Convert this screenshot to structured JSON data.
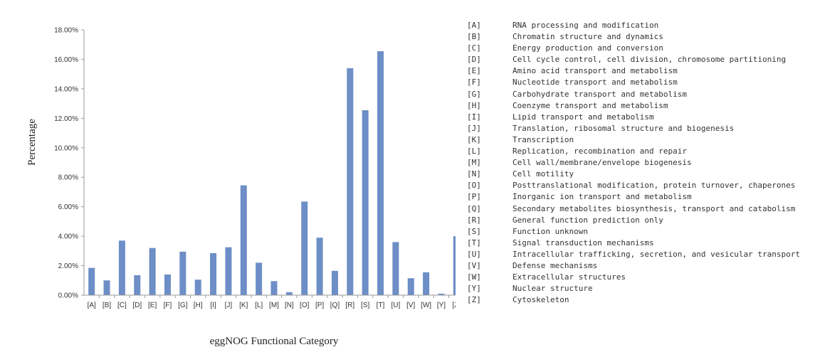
{
  "chart_data": {
    "type": "bar",
    "ylabel": "Percentage",
    "xlabel": "eggNOG Functional Category",
    "ylim": [
      0,
      18
    ],
    "yticks": [
      "0.00%",
      "2.00%",
      "4.00%",
      "6.00%",
      "8.00%",
      "10.00%",
      "12.00%",
      "14.00%",
      "16.00%",
      "18.00%"
    ],
    "bar_color": "#6d8ec6",
    "categories": [
      "[A]",
      "[B]",
      "[C]",
      "[D]",
      "[E]",
      "[F]",
      "[G]",
      "[H]",
      "[I]",
      "[J]",
      "[K]",
      "[L]",
      "[M]",
      "[N]",
      "[O]",
      "[P]",
      "[Q]",
      "[R]",
      "[S]",
      "[T]",
      "[U]",
      "[V]",
      "[W]",
      "[Y]",
      "[Z]"
    ],
    "values": [
      1.85,
      1.0,
      3.7,
      1.35,
      3.2,
      1.4,
      2.95,
      1.05,
      2.85,
      3.25,
      7.45,
      2.2,
      0.95,
      0.2,
      6.35,
      3.9,
      1.65,
      15.4,
      12.55,
      16.55,
      3.6,
      1.15,
      1.55,
      0.1,
      4.0
    ],
    "legend": [
      {
        "code": "[A]",
        "label": "RNA processing and modification"
      },
      {
        "code": "[B]",
        "label": "Chromatin structure and dynamics"
      },
      {
        "code": "[C]",
        "label": "Energy production and conversion"
      },
      {
        "code": "[D]",
        "label": "Cell cycle control, cell division, chromosome partitioning"
      },
      {
        "code": "[E]",
        "label": "Amino acid transport and metabolism"
      },
      {
        "code": "[F]",
        "label": "Nucleotide transport and metabolism"
      },
      {
        "code": "[G]",
        "label": "Carbohydrate transport and metabolism"
      },
      {
        "code": "[H]",
        "label": "Coenzyme transport and metabolism"
      },
      {
        "code": "[I]",
        "label": "Lipid transport and metabolism"
      },
      {
        "code": "[J]",
        "label": "Translation, ribosomal structure and biogenesis"
      },
      {
        "code": "[K]",
        "label": "Transcription"
      },
      {
        "code": "[L]",
        "label": "Replication, recombination and repair"
      },
      {
        "code": "[M]",
        "label": "Cell wall/membrane/envelope biogenesis"
      },
      {
        "code": "[N]",
        "label": "Cell motility"
      },
      {
        "code": "[O]",
        "label": "Posttranslational modification, protein turnover, chaperones"
      },
      {
        "code": "[P]",
        "label": "Inorganic ion transport and metabolism"
      },
      {
        "code": "[Q]",
        "label": "Secondary metabolites biosynthesis, transport and catabolism"
      },
      {
        "code": "[R]",
        "label": "General function prediction only"
      },
      {
        "code": "[S]",
        "label": "Function unknown"
      },
      {
        "code": "[T]",
        "label": "Signal transduction mechanisms"
      },
      {
        "code": "[U]",
        "label": "Intracellular trafficking, secretion, and vesicular transport"
      },
      {
        "code": "[V]",
        "label": "Defense mechanisms"
      },
      {
        "code": "[W]",
        "label": "Extracellular structures"
      },
      {
        "code": "[Y]",
        "label": "Nuclear structure"
      },
      {
        "code": "[Z]",
        "label": "Cytoskeleton"
      }
    ]
  }
}
